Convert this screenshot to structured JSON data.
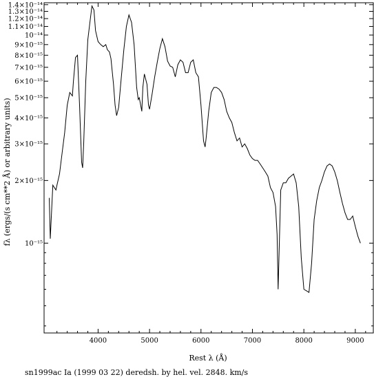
{
  "chart_data": {
    "type": "line",
    "title": "",
    "caption": "sn1999ac Ia (1999 03 22) deredsh. by hel. vel.  2848. km/s",
    "xlabel": "Rest λ (Å)",
    "ylabel": "fλ (ergs/(s cm**2 Å) or arbitrary units)",
    "y_scale": "log",
    "xlim": [
      2950,
      9350
    ],
    "ylim": [
      3.7e-16,
      1.43e-14
    ],
    "x_ticks": [
      {
        "value": 4000,
        "label": "4000"
      },
      {
        "value": 5000,
        "label": "5000"
      },
      {
        "value": 6000,
        "label": "6000"
      },
      {
        "value": 7000,
        "label": "7000"
      },
      {
        "value": 8000,
        "label": "8000"
      },
      {
        "value": 9000,
        "label": "9000"
      }
    ],
    "y_ticks": [
      {
        "value": 1.4e-14,
        "label": "1.4×10⁻¹⁴"
      },
      {
        "value": 1.3e-14,
        "label": "1.3×10⁻¹⁴"
      },
      {
        "value": 1.2e-14,
        "label": "1.2×10⁻¹⁴"
      },
      {
        "value": 1.1e-14,
        "label": "1.1×10⁻¹⁴"
      },
      {
        "value": 1e-14,
        "label": "10⁻¹⁴"
      },
      {
        "value": 9e-15,
        "label": "9×10⁻¹⁵"
      },
      {
        "value": 8e-15,
        "label": "8×10⁻¹⁵"
      },
      {
        "value": 7e-15,
        "label": "7×10⁻¹⁵"
      },
      {
        "value": 6e-15,
        "label": "6×10⁻¹⁵"
      },
      {
        "value": 5e-15,
        "label": "5×10⁻¹⁵"
      },
      {
        "value": 4e-15,
        "label": "4×10⁻¹⁵"
      },
      {
        "value": 3e-15,
        "label": "3×10⁻¹⁵"
      },
      {
        "value": 2e-15,
        "label": "2×10⁻¹⁵"
      },
      {
        "value": 1e-15,
        "label": "10⁻¹⁵"
      }
    ],
    "series": [
      {
        "x": [
          3050,
          3070,
          3120,
          3150,
          3180,
          3200,
          3250,
          3300,
          3350,
          3400,
          3450,
          3500,
          3520,
          3560,
          3600,
          3640,
          3680,
          3700,
          3720,
          3760,
          3800,
          3850,
          3880,
          3920,
          3950,
          4000,
          4050,
          4100,
          4150,
          4180,
          4220,
          4250,
          4300,
          4330,
          4360,
          4400,
          4450,
          4500,
          4550,
          4600,
          4650,
          4700,
          4750,
          4780,
          4800,
          4850,
          4870,
          4900,
          4950,
          4980,
          5000,
          5050,
          5100,
          5150,
          5200,
          5250,
          5300,
          5350,
          5400,
          5450,
          5500,
          5550,
          5600,
          5650,
          5700,
          5750,
          5800,
          5850,
          5900,
          5950,
          6000,
          6050,
          6080,
          6100,
          6150,
          6200,
          6250,
          6300,
          6350,
          6400,
          6450,
          6500,
          6550,
          6600,
          6650,
          6700,
          6750,
          6800,
          6850,
          6900,
          6950,
          7000,
          7050,
          7100,
          7150,
          7200,
          7250,
          7300,
          7350,
          7400,
          7450,
          7480,
          7500,
          7550,
          7600,
          7650,
          7700,
          7750,
          7800,
          7850,
          7900,
          7950,
          8000,
          8050,
          8100,
          8150,
          8200,
          8250,
          8300,
          8350,
          8400,
          8450,
          8500,
          8550,
          8600,
          8650,
          8700,
          8750,
          8800,
          8850,
          8900,
          8950,
          9000,
          9050,
          9100
        ],
        "y": [
          1.65e-15,
          1.05e-15,
          1.9e-15,
          1.85e-15,
          1.8e-15,
          1.9e-15,
          2.15e-15,
          2.7e-15,
          3.4e-15,
          4.6e-15,
          5.3e-15,
          5.1e-15,
          6e-15,
          7.8e-15,
          8e-15,
          4.6e-15,
          2.45e-15,
          2.3e-15,
          3e-15,
          6e-15,
          9.5e-15,
          1.2e-14,
          1.38e-14,
          1.32e-14,
          1.05e-14,
          9.3e-15,
          9e-15,
          8.8e-15,
          9e-15,
          8.5e-15,
          8.3e-15,
          7.7e-15,
          5.8e-15,
          4.6e-15,
          4.1e-15,
          4.5e-15,
          6.2e-15,
          8.5e-15,
          1.1e-14,
          1.25e-14,
          1.15e-14,
          9e-15,
          5.6e-15,
          4.9e-15,
          5e-15,
          4.3e-15,
          5.6e-15,
          6.5e-15,
          5.8e-15,
          4.6e-15,
          4.4e-15,
          5.2e-15,
          6.3e-15,
          7.4e-15,
          8.6e-15,
          9.6e-15,
          8.8e-15,
          7.5e-15,
          7.1e-15,
          7e-15,
          6.3e-15,
          7.2e-15,
          7.6e-15,
          7.4e-15,
          6.6e-15,
          6.6e-15,
          7.4e-15,
          7.6e-15,
          6.6e-15,
          6.3e-15,
          4.6e-15,
          3.1e-15,
          2.9e-15,
          3.2e-15,
          4.3e-15,
          5.3e-15,
          5.6e-15,
          5.6e-15,
          5.5e-15,
          5.3e-15,
          4.9e-15,
          4.3e-15,
          4e-15,
          3.8e-15,
          3.4e-15,
          3.1e-15,
          3.2e-15,
          2.9e-15,
          3e-15,
          2.85e-15,
          2.65e-15,
          2.55e-15,
          2.5e-15,
          2.5e-15,
          2.4e-15,
          2.3e-15,
          2.2e-15,
          2.1e-15,
          1.85e-15,
          1.75e-15,
          1.5e-15,
          1.1e-15,
          6e-16,
          1.8e-15,
          1.95e-15,
          1.95e-15,
          2.05e-15,
          2.1e-15,
          2.15e-15,
          1.95e-15,
          1.5e-15,
          8.5e-16,
          6e-16,
          5.9e-16,
          5.8e-16,
          8e-16,
          1.3e-15,
          1.6e-15,
          1.85e-15,
          2e-15,
          2.2e-15,
          2.35e-15,
          2.4e-15,
          2.35e-15,
          2.2e-15,
          2e-15,
          1.75e-15,
          1.55e-15,
          1.4e-15,
          1.3e-15,
          1.3e-15,
          1.35e-15,
          1.2e-15,
          1.08e-15,
          1e-15
        ]
      }
    ],
    "grid": false,
    "legend": "none"
  }
}
